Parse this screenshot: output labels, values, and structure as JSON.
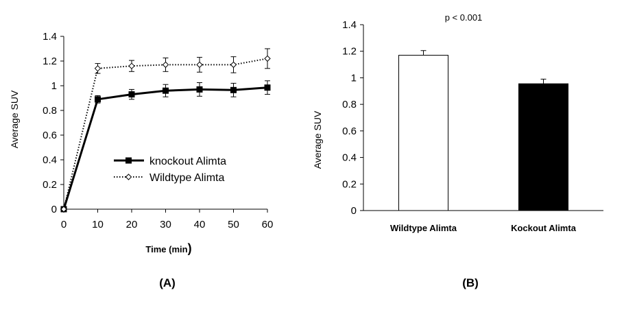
{
  "chart_data": [
    {
      "type": "line",
      "panel_label": "(A)",
      "xlabel": "Time  (min",
      "xlabel_paren": ")",
      "ylabel": "Average SUV",
      "xlim": [
        0,
        60
      ],
      "ylim": [
        0,
        1.4
      ],
      "xticks": [
        "0",
        "10",
        "20",
        "30",
        "40",
        "50",
        "60"
      ],
      "yticks": [
        "0",
        "0.2",
        "0.4",
        "0.6",
        "0.8",
        "1",
        "1.2",
        "1.4"
      ],
      "x": [
        0,
        10,
        20,
        30,
        40,
        50,
        60
      ],
      "legend_position": "center-right",
      "series": [
        {
          "name": "knockout Alimta",
          "style": "solid",
          "marker": "filled-square",
          "color": "#000000",
          "values": [
            0.0,
            0.89,
            0.93,
            0.96,
            0.97,
            0.965,
            0.985
          ],
          "errors": [
            0.0,
            0.03,
            0.04,
            0.05,
            0.055,
            0.055,
            0.055
          ]
        },
        {
          "name": "Wildtype Alimta",
          "style": "dotted",
          "marker": "open-diamond",
          "color": "#000000",
          "values": [
            0.0,
            1.14,
            1.16,
            1.17,
            1.17,
            1.17,
            1.22
          ],
          "errors": [
            0.0,
            0.04,
            0.045,
            0.055,
            0.06,
            0.065,
            0.08
          ]
        }
      ]
    },
    {
      "type": "bar",
      "panel_label": "(B)",
      "annotation": "p < 0.001",
      "ylabel": "Average SUV",
      "ylim": [
        0,
        1.4
      ],
      "yticks": [
        "0",
        "0.2",
        "0.4",
        "0.6",
        "0.8",
        "1",
        "1.2",
        "1.4"
      ],
      "categories": [
        "Wildtype Alimta",
        "Kockout Alimta"
      ],
      "values": [
        1.17,
        0.955
      ],
      "errors": [
        0.035,
        0.035
      ],
      "fills": [
        "#ffffff",
        "#000000"
      ]
    }
  ]
}
